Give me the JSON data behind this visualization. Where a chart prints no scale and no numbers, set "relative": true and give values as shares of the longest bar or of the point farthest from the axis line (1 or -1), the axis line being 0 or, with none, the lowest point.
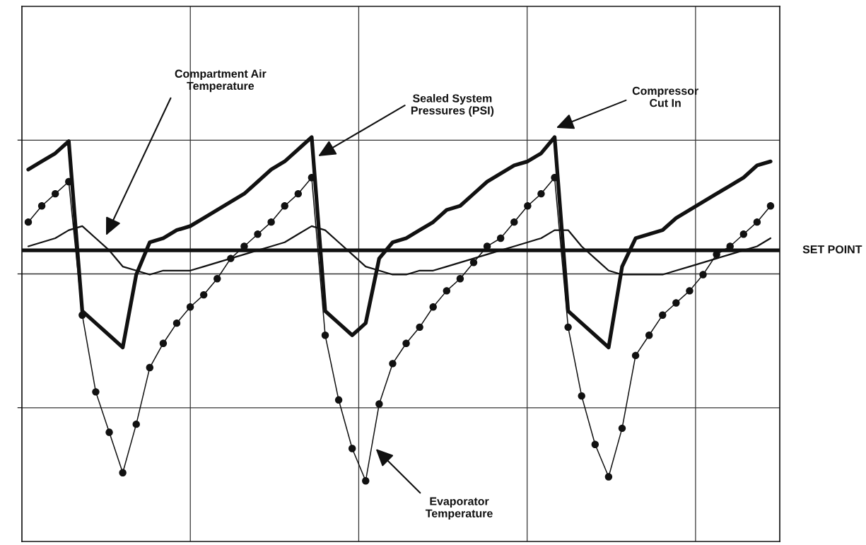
{
  "chart_data": {
    "type": "line",
    "relative": true,
    "grid": true,
    "categories": [
      null,
      null,
      null,
      null,
      null,
      null,
      null,
      null,
      null,
      null,
      null,
      null,
      null,
      null,
      null,
      null,
      null,
      null,
      null,
      null,
      null,
      null,
      null,
      null,
      null,
      null,
      null,
      null,
      null,
      null,
      null,
      null,
      null,
      null,
      null,
      null,
      null,
      null,
      null,
      null,
      null,
      null,
      null,
      null,
      null,
      null,
      null,
      null,
      null,
      null,
      null,
      null,
      null,
      null,
      null,
      null
    ],
    "series": [
      {
        "name": "Compartment Air\nTemperature",
        "color": "#111111",
        "values": [
          0.73,
          0.74,
          0.75,
          0.77,
          0.78,
          0.75,
          0.72,
          0.68,
          0.67,
          0.66,
          0.67,
          0.67,
          0.67,
          0.68,
          0.69,
          0.7,
          0.71,
          0.72,
          0.73,
          0.74,
          0.76,
          0.78,
          0.77,
          0.74,
          0.71,
          0.68,
          0.67,
          0.66,
          0.66,
          0.67,
          0.67,
          0.68,
          0.69,
          0.7,
          0.71,
          0.72,
          0.73,
          0.74,
          0.75,
          0.77,
          0.77,
          0.73,
          0.7,
          0.67,
          0.66,
          0.66,
          0.66,
          0.66,
          0.67,
          0.68,
          0.69,
          0.7,
          0.71,
          0.72,
          0.73,
          0.75
        ]
      },
      {
        "name": "Evaporator\nTemperature",
        "color": "#111111",
        "marker": "circle",
        "values": [
          0.79,
          0.83,
          0.86,
          0.89,
          0.56,
          0.37,
          0.27,
          0.17,
          0.29,
          0.43,
          0.49,
          0.54,
          0.58,
          0.61,
          0.65,
          0.7,
          0.73,
          0.76,
          0.79,
          0.83,
          0.86,
          0.9,
          0.51,
          0.35,
          0.23,
          0.15,
          0.34,
          0.44,
          0.49,
          0.53,
          0.58,
          0.62,
          0.65,
          0.69,
          0.73,
          0.75,
          0.79,
          0.83,
          0.86,
          0.9,
          0.53,
          0.36,
          0.24,
          0.16,
          0.28,
          0.46,
          0.51,
          0.56,
          0.59,
          0.62,
          0.66,
          0.71,
          0.73,
          0.76,
          0.79,
          0.83
        ]
      },
      {
        "name": "Sealed System\nPressures (PSI)",
        "color": "#111111",
        "values": [
          0.92,
          0.94,
          0.96,
          0.99,
          0.57,
          0.54,
          0.51,
          0.48,
          0.66,
          0.74,
          0.75,
          0.77,
          0.78,
          0.8,
          0.82,
          0.84,
          0.86,
          0.89,
          0.92,
          0.94,
          0.97,
          1,
          0.57,
          0.54,
          0.51,
          0.54,
          0.7,
          0.74,
          0.75,
          0.77,
          0.79,
          0.82,
          0.83,
          0.86,
          0.89,
          0.91,
          0.93,
          0.94,
          0.96,
          1,
          0.57,
          0.54,
          0.51,
          0.48,
          0.68,
          0.75,
          0.76,
          0.77,
          0.8,
          0.82,
          0.84,
          0.86,
          0.88,
          0.9,
          0.93,
          0.94
        ]
      }
    ],
    "ref_lines": [
      {
        "axis": "y",
        "value": 0.72,
        "label": "SET POINT",
        "color": "#111111"
      }
    ],
    "annotations": [
      "Compressor\nCut In"
    ]
  }
}
